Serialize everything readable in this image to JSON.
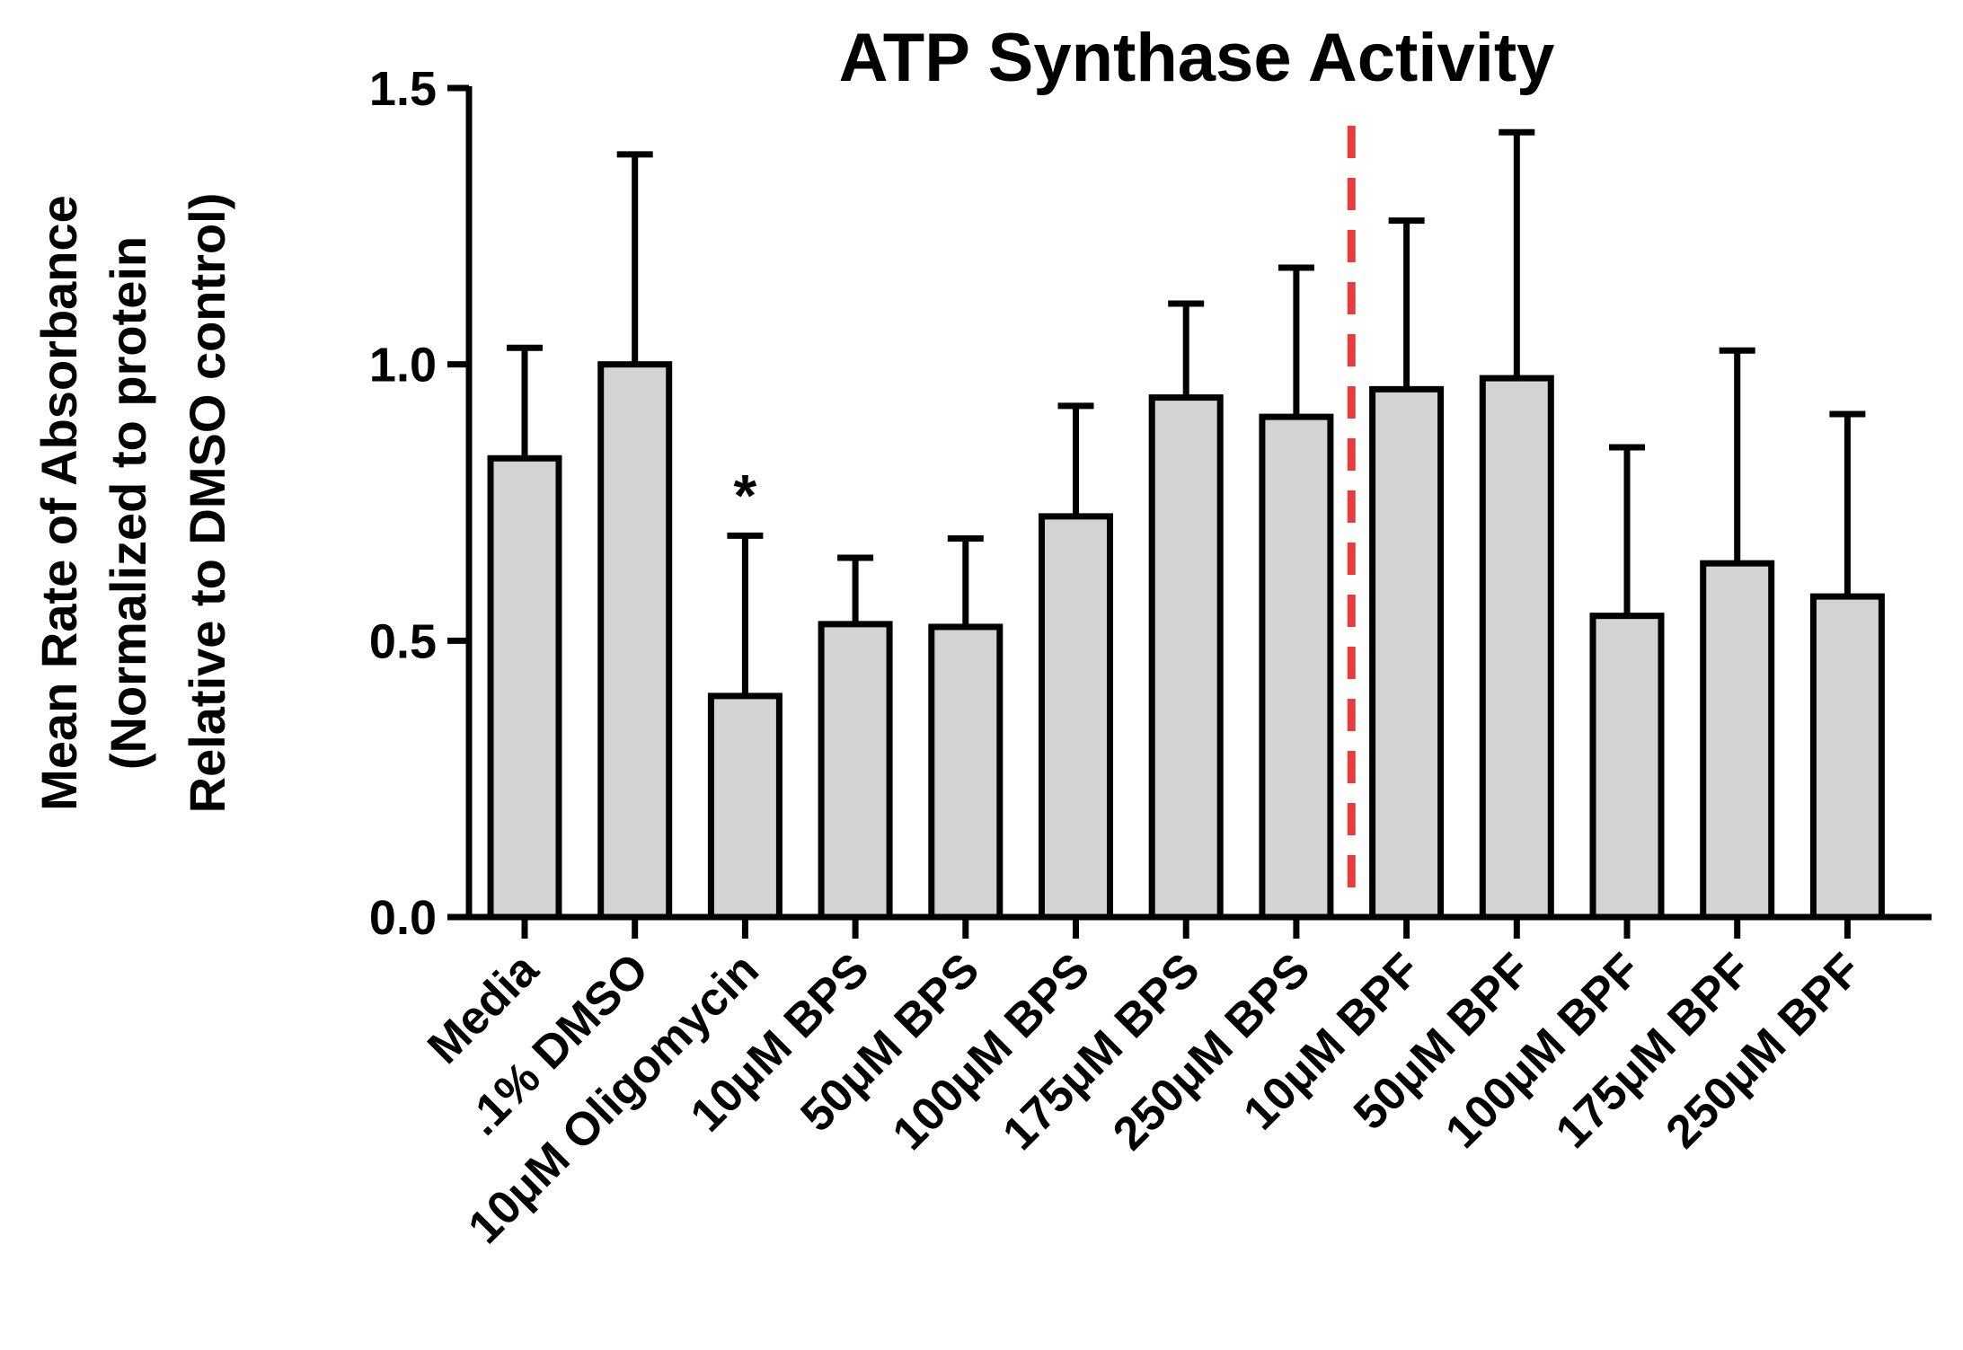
{
  "chart_data": {
    "type": "bar",
    "title": "ATP Synthase Activity",
    "ylabel_lines": [
      "Mean Rate of Absorbance",
      "(Normalized to protein",
      "Relative to DMSO control)"
    ],
    "xlabel": "",
    "ylim": [
      0,
      1.5
    ],
    "yticks": [
      0.0,
      0.5,
      1.0,
      1.5
    ],
    "ytick_labels": [
      "0.0",
      "0.5",
      "1.0",
      "1.5"
    ],
    "categories": [
      "Media",
      ".1% DMSO",
      "10μM Oligomycin",
      "10μM BPS",
      "50μM BPS",
      "100μM BPS",
      "175μM BPS",
      "250μM BPS",
      "10μM BPF",
      "50μM BPF",
      "100μM BPF",
      "175μM BPF",
      "250μM BPF"
    ],
    "values": [
      0.83,
      1.0,
      0.4,
      0.53,
      0.525,
      0.725,
      0.94,
      0.905,
      0.955,
      0.975,
      0.545,
      0.64,
      0.58
    ],
    "error_upper": [
      1.03,
      1.38,
      0.69,
      0.65,
      0.685,
      0.925,
      1.11,
      1.175,
      1.26,
      1.42,
      0.85,
      1.025,
      0.91
    ],
    "annotations": [
      {
        "category": "10μM Oligomycin",
        "text": "*"
      }
    ],
    "divider_after_category": "250μM BPS",
    "colors": {
      "bar_fill": "#d3d3d3",
      "bar_stroke": "#000000",
      "divider": "#e83b3b"
    }
  }
}
